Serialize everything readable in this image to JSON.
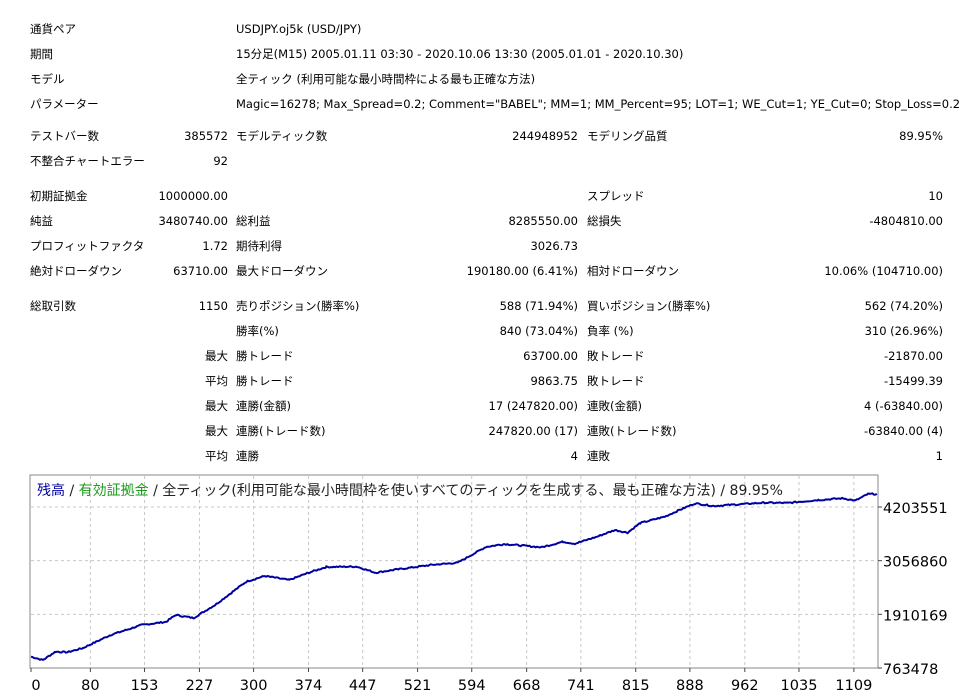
{
  "header_rows": [
    {
      "label": "通貨ペア",
      "value": "USDJPY.oj5k (USD/JPY)"
    },
    {
      "label": "期間",
      "value": "15分足(M15) 2005.01.11 03:30 - 2020.10.06 13:30 (2005.01.01 - 2020.10.30)"
    },
    {
      "label": "モデル",
      "value": "全ティック (利用可能な最小時間枠による最も正確な方法)"
    },
    {
      "label": "パラメーター",
      "value": "Magic=16278; Max_Spread=0.2; Comment=\"BABEL\"; MM=1; MM_Percent=95; LOT=1; WE_Cut=1; YE_Cut=0; Stop_Loss=0.2;"
    }
  ],
  "stat_rows": [
    [
      "テストバー数",
      "385572",
      "モデルティック数",
      "244948952",
      "モデリング品質",
      "89.95%"
    ],
    [
      "不整合チャートエラー",
      "92",
      "",
      "",
      "",
      ""
    ],
    [
      "初期証拠金",
      "1000000.00",
      "",
      "",
      "スプレッド",
      "10"
    ],
    [
      "純益",
      "3480740.00",
      "総利益",
      "8285550.00",
      "総損失",
      "-4804810.00"
    ],
    [
      "プロフィットファクタ",
      "1.72",
      "期待利得",
      "3026.73",
      "",
      ""
    ],
    [
      "絶対ドローダウン",
      "63710.00",
      "最大ドローダウン",
      "190180.00 (6.41%)",
      "相対ドローダウン",
      "10.06% (104710.00)"
    ],
    [
      "総取引数",
      "1150",
      "売りポジション(勝率%)",
      "588 (71.94%)",
      "買いポジション(勝率%)",
      "562 (74.20%)"
    ],
    [
      "",
      "",
      "勝率(%)",
      "840 (73.04%)",
      "負率 (%)",
      "310 (26.96%)"
    ],
    [
      "",
      "最大",
      "勝トレード",
      "63700.00",
      "敗トレード",
      "-21870.00"
    ],
    [
      "",
      "平均",
      "勝トレード",
      "9863.75",
      "敗トレード",
      "-15499.39"
    ],
    [
      "",
      "最大",
      "連勝(金額)",
      "17 (247820.00)",
      "連敗(金額)",
      "4 (-63840.00)"
    ],
    [
      "",
      "最大",
      "連勝(トレード数)",
      "247820.00 (17)",
      "連敗(トレード数)",
      "-63840.00 (4)"
    ],
    [
      "",
      "平均",
      "連勝",
      "4",
      "連敗",
      "1"
    ]
  ],
  "chart_data": {
    "type": "line",
    "title_parts": [
      "残高",
      " / ",
      "有効証拠金",
      " / 全ティック(利用可能な最小時間枠を使いすべてのティックを生成する、最も正確な方法) / 89.95%"
    ],
    "colors": {
      "balance": "#0000a0",
      "equity": "#1c9a1c",
      "text": "#222222",
      "grid": "#c8c8c8"
    },
    "x_ticks": [
      0,
      80,
      153,
      227,
      300,
      374,
      447,
      521,
      594,
      668,
      741,
      815,
      888,
      962,
      1035,
      1109
    ],
    "y_ticks": [
      763478,
      1910169,
      3056860,
      4203551
    ],
    "xlim": [
      0,
      1142
    ],
    "ylim": [
      763478,
      4890000
    ],
    "grid": true,
    "series": [
      {
        "name": "残高",
        "points": [
          [
            0,
            1005000
          ],
          [
            16,
            934000
          ],
          [
            33,
            1112000
          ],
          [
            49,
            1100000
          ],
          [
            70,
            1190000
          ],
          [
            107,
            1468000
          ],
          [
            149,
            1682000
          ],
          [
            182,
            1750000
          ],
          [
            195,
            1896000
          ],
          [
            219,
            1832000
          ],
          [
            248,
            2110000
          ],
          [
            290,
            2608000
          ],
          [
            315,
            2730000
          ],
          [
            348,
            2643000
          ],
          [
            373,
            2793000
          ],
          [
            398,
            2922000
          ],
          [
            439,
            2930000
          ],
          [
            464,
            2800000
          ],
          [
            489,
            2860000
          ],
          [
            539,
            2965000
          ],
          [
            575,
            3013000
          ],
          [
            613,
            3350000
          ],
          [
            638,
            3413000
          ],
          [
            688,
            3342000
          ],
          [
            717,
            3462000
          ],
          [
            733,
            3420000
          ],
          [
            763,
            3570000
          ],
          [
            787,
            3712000
          ],
          [
            804,
            3655000
          ],
          [
            821,
            3860000
          ],
          [
            854,
            3996000
          ],
          [
            879,
            4175000
          ],
          [
            895,
            4281000
          ],
          [
            920,
            4225000
          ],
          [
            987,
            4295000
          ],
          [
            1020,
            4290000
          ],
          [
            1061,
            4353000
          ],
          [
            1094,
            4390000
          ],
          [
            1111,
            4340000
          ],
          [
            1128,
            4481000
          ],
          [
            1140,
            4480740
          ]
        ]
      }
    ]
  }
}
